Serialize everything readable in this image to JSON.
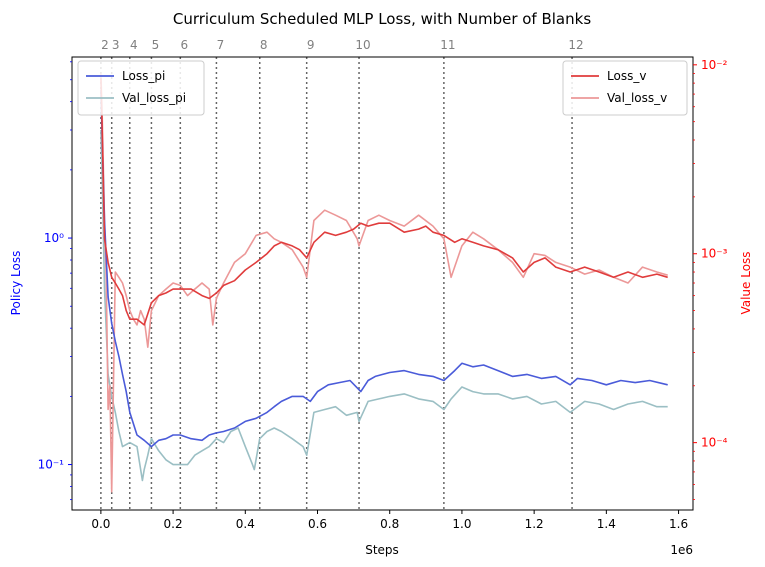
{
  "chart_data": {
    "type": "line",
    "title": "Curriculum Scheduled MLP Loss, with Number of Blanks",
    "xlabel": "Steps",
    "x_scale_label": "1e6",
    "ylabel_left": "Policy Loss",
    "ylabel_right": "Value Loss",
    "xlim": [
      -0.08,
      1.64
    ],
    "ylim_left": [
      0.063,
      6.3
    ],
    "ylim_right": [
      4.4e-05,
      0.011
    ],
    "y_scale_left": "log",
    "y_scale_right": "log",
    "x_ticks": [
      0.0,
      0.2,
      0.4,
      0.6,
      0.8,
      1.0,
      1.2,
      1.4,
      1.6
    ],
    "x_tick_labels": [
      "0.0",
      "0.2",
      "0.4",
      "0.6",
      "0.8",
      "1.0",
      "1.2",
      "1.4",
      "1.6"
    ],
    "y_left_ticks": [
      0.1,
      1
    ],
    "y_left_tick_labels": [
      "10⁻¹",
      "10⁰"
    ],
    "y_right_ticks": [
      0.0001,
      0.001,
      0.01
    ],
    "y_right_tick_labels": [
      "10⁻⁴",
      "10⁻³",
      "10⁻²"
    ],
    "colors": {
      "left_axis": "#0000ff",
      "right_axis": "#ff0000",
      "loss_pi": "#4a5bd9",
      "val_loss_pi": "#9bbfc4",
      "loss_v": "#e03c3c",
      "val_loss_v": "#ec9898",
      "vline": "#666666"
    },
    "legend_left": [
      "Loss_pi",
      "Val_loss_pi"
    ],
    "legend_right": [
      "Loss_v",
      "Val_loss_v"
    ],
    "legend_left_position": "upper-left",
    "legend_right_position": "upper-right",
    "curriculum_markers": {
      "labels": [
        "2",
        "3",
        "4",
        "5",
        "6",
        "7",
        "8",
        "9",
        "10",
        "11",
        "12"
      ],
      "x": [
        0.0,
        0.03,
        0.08,
        0.14,
        0.22,
        0.32,
        0.44,
        0.57,
        0.715,
        0.95,
        1.305
      ]
    },
    "series": [
      {
        "name": "Loss_pi",
        "axis": "left",
        "x": [
          0.0,
          0.003,
          0.01,
          0.02,
          0.03,
          0.04,
          0.05,
          0.06,
          0.07,
          0.08,
          0.1,
          0.12,
          0.14,
          0.16,
          0.18,
          0.2,
          0.22,
          0.25,
          0.28,
          0.3,
          0.32,
          0.34,
          0.37,
          0.4,
          0.43,
          0.46,
          0.48,
          0.5,
          0.53,
          0.56,
          0.58,
          0.6,
          0.63,
          0.66,
          0.69,
          0.72,
          0.74,
          0.76,
          0.8,
          0.84,
          0.88,
          0.92,
          0.95,
          0.98,
          1.0,
          1.03,
          1.06,
          1.1,
          1.14,
          1.18,
          1.22,
          1.26,
          1.3,
          1.32,
          1.36,
          1.4,
          1.44,
          1.48,
          1.52,
          1.57
        ],
        "values": [
          4.5,
          3.0,
          1.2,
          0.55,
          0.42,
          0.35,
          0.3,
          0.25,
          0.21,
          0.17,
          0.135,
          0.128,
          0.12,
          0.128,
          0.13,
          0.135,
          0.135,
          0.13,
          0.128,
          0.135,
          0.138,
          0.14,
          0.145,
          0.155,
          0.16,
          0.17,
          0.18,
          0.19,
          0.2,
          0.2,
          0.19,
          0.21,
          0.225,
          0.23,
          0.235,
          0.21,
          0.235,
          0.245,
          0.255,
          0.26,
          0.25,
          0.245,
          0.235,
          0.26,
          0.28,
          0.27,
          0.275,
          0.26,
          0.245,
          0.25,
          0.24,
          0.245,
          0.225,
          0.24,
          0.235,
          0.225,
          0.235,
          0.23,
          0.235,
          0.225
        ]
      },
      {
        "name": "Val_loss_pi",
        "axis": "left",
        "x": [
          0.0,
          0.003,
          0.01,
          0.02,
          0.03,
          0.04,
          0.05,
          0.06,
          0.08,
          0.1,
          0.115,
          0.12,
          0.13,
          0.14,
          0.16,
          0.18,
          0.2,
          0.22,
          0.24,
          0.26,
          0.28,
          0.3,
          0.32,
          0.34,
          0.36,
          0.38,
          0.4,
          0.42,
          0.425,
          0.44,
          0.46,
          0.48,
          0.5,
          0.53,
          0.56,
          0.57,
          0.59,
          0.62,
          0.65,
          0.68,
          0.71,
          0.715,
          0.74,
          0.77,
          0.8,
          0.84,
          0.88,
          0.92,
          0.95,
          0.97,
          1.0,
          1.03,
          1.06,
          1.1,
          1.14,
          1.18,
          1.22,
          1.26,
          1.3,
          1.34,
          1.38,
          1.42,
          1.46,
          1.5,
          1.54,
          1.57
        ],
        "values": [
          3.0,
          2.0,
          0.6,
          0.25,
          0.2,
          0.17,
          0.14,
          0.12,
          0.125,
          0.12,
          0.085,
          0.095,
          0.11,
          0.13,
          0.115,
          0.105,
          0.1,
          0.1,
          0.1,
          0.11,
          0.115,
          0.12,
          0.13,
          0.125,
          0.14,
          0.145,
          0.12,
          0.1,
          0.095,
          0.13,
          0.14,
          0.145,
          0.14,
          0.13,
          0.12,
          0.11,
          0.17,
          0.175,
          0.18,
          0.165,
          0.17,
          0.155,
          0.19,
          0.195,
          0.2,
          0.205,
          0.195,
          0.19,
          0.175,
          0.195,
          0.22,
          0.21,
          0.205,
          0.205,
          0.195,
          0.2,
          0.185,
          0.19,
          0.17,
          0.19,
          0.185,
          0.175,
          0.185,
          0.19,
          0.18,
          0.18
        ]
      },
      {
        "name": "Loss_v",
        "axis": "right",
        "x": [
          0.0,
          0.003,
          0.01,
          0.02,
          0.03,
          0.04,
          0.05,
          0.06,
          0.07,
          0.08,
          0.1,
          0.12,
          0.14,
          0.16,
          0.18,
          0.2,
          0.22,
          0.25,
          0.28,
          0.3,
          0.32,
          0.34,
          0.37,
          0.4,
          0.43,
          0.46,
          0.48,
          0.5,
          0.53,
          0.55,
          0.57,
          0.59,
          0.62,
          0.65,
          0.68,
          0.7,
          0.72,
          0.74,
          0.77,
          0.8,
          0.84,
          0.88,
          0.9,
          0.92,
          0.95,
          0.98,
          1.0,
          1.03,
          1.06,
          1.1,
          1.14,
          1.17,
          1.2,
          1.23,
          1.26,
          1.3,
          1.34,
          1.38,
          1.42,
          1.46,
          1.5,
          1.54,
          1.57
        ],
        "values": [
          0.0085,
          0.005,
          0.0012,
          0.0009,
          0.00075,
          0.0007,
          0.00065,
          0.0006,
          0.0005,
          0.00045,
          0.00045,
          0.00042,
          0.00055,
          0.0006,
          0.00062,
          0.00065,
          0.00065,
          0.00065,
          0.0006,
          0.00058,
          0.00062,
          0.00068,
          0.00072,
          0.00082,
          0.0009,
          0.001,
          0.0011,
          0.00115,
          0.0011,
          0.00105,
          0.00095,
          0.00115,
          0.0013,
          0.00125,
          0.0013,
          0.00135,
          0.00145,
          0.0014,
          0.00145,
          0.00145,
          0.0013,
          0.00135,
          0.0014,
          0.0013,
          0.00125,
          0.00115,
          0.0012,
          0.00115,
          0.0011,
          0.00105,
          0.00095,
          0.0008,
          0.0009,
          0.00095,
          0.00085,
          0.0008,
          0.00085,
          0.0008,
          0.00075,
          0.0008,
          0.00075,
          0.00078,
          0.00075
        ]
      },
      {
        "name": "Val_loss_v",
        "axis": "right",
        "x": [
          0.0,
          0.003,
          0.01,
          0.015,
          0.02,
          0.025,
          0.03,
          0.04,
          0.05,
          0.06,
          0.07,
          0.08,
          0.09,
          0.1,
          0.11,
          0.12,
          0.13,
          0.14,
          0.16,
          0.18,
          0.2,
          0.22,
          0.24,
          0.26,
          0.28,
          0.3,
          0.31,
          0.32,
          0.34,
          0.37,
          0.4,
          0.43,
          0.46,
          0.48,
          0.5,
          0.53,
          0.56,
          0.57,
          0.59,
          0.62,
          0.65,
          0.68,
          0.71,
          0.715,
          0.74,
          0.77,
          0.8,
          0.84,
          0.88,
          0.92,
          0.95,
          0.97,
          1.0,
          1.03,
          1.06,
          1.1,
          1.14,
          1.17,
          1.2,
          1.23,
          1.26,
          1.3,
          1.34,
          1.38,
          1.42,
          1.46,
          1.5,
          1.54,
          1.57
        ],
        "values": [
          0.009,
          0.006,
          0.0015,
          0.0007,
          0.00015,
          0.0002,
          5.5e-05,
          0.0008,
          0.00075,
          0.0007,
          0.0006,
          0.0005,
          0.00045,
          0.00042,
          0.0005,
          0.00045,
          0.00032,
          0.0005,
          0.0006,
          0.00065,
          0.0007,
          0.00068,
          0.0006,
          0.00065,
          0.0007,
          0.00065,
          0.00042,
          0.00058,
          0.0007,
          0.0009,
          0.001,
          0.00125,
          0.0013,
          0.0012,
          0.00115,
          0.00105,
          0.00085,
          0.00075,
          0.0015,
          0.0017,
          0.0016,
          0.0015,
          0.0012,
          0.0011,
          0.0015,
          0.0016,
          0.0015,
          0.0014,
          0.0016,
          0.0014,
          0.0012,
          0.00075,
          0.0011,
          0.0013,
          0.0012,
          0.00105,
          0.0009,
          0.00075,
          0.001,
          0.00098,
          0.0009,
          0.00085,
          0.00078,
          0.00082,
          0.00075,
          0.0007,
          0.00085,
          0.0008,
          0.00077
        ]
      }
    ]
  }
}
